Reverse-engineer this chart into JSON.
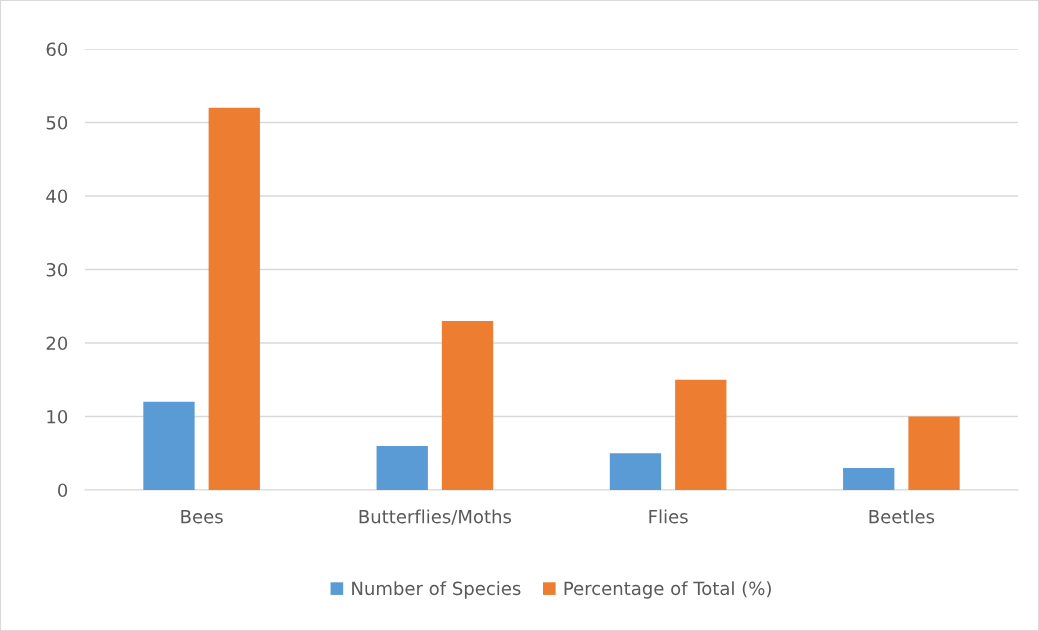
{
  "chart_data": {
    "type": "bar",
    "categories": [
      "Bees",
      "Butterflies/Moths",
      "Flies",
      "Beetles"
    ],
    "series": [
      {
        "name": "Number of Species",
        "color": "#5b9bd5",
        "values": [
          12,
          6,
          5,
          3
        ]
      },
      {
        "name": "Percentage of Total (%)",
        "color": "#ed7d31",
        "values": [
          52,
          23,
          15,
          10
        ]
      }
    ],
    "ylim": [
      0,
      60
    ],
    "yticks": [
      0,
      10,
      20,
      30,
      40,
      50,
      60
    ],
    "grid": "y",
    "legend": "bottom"
  }
}
